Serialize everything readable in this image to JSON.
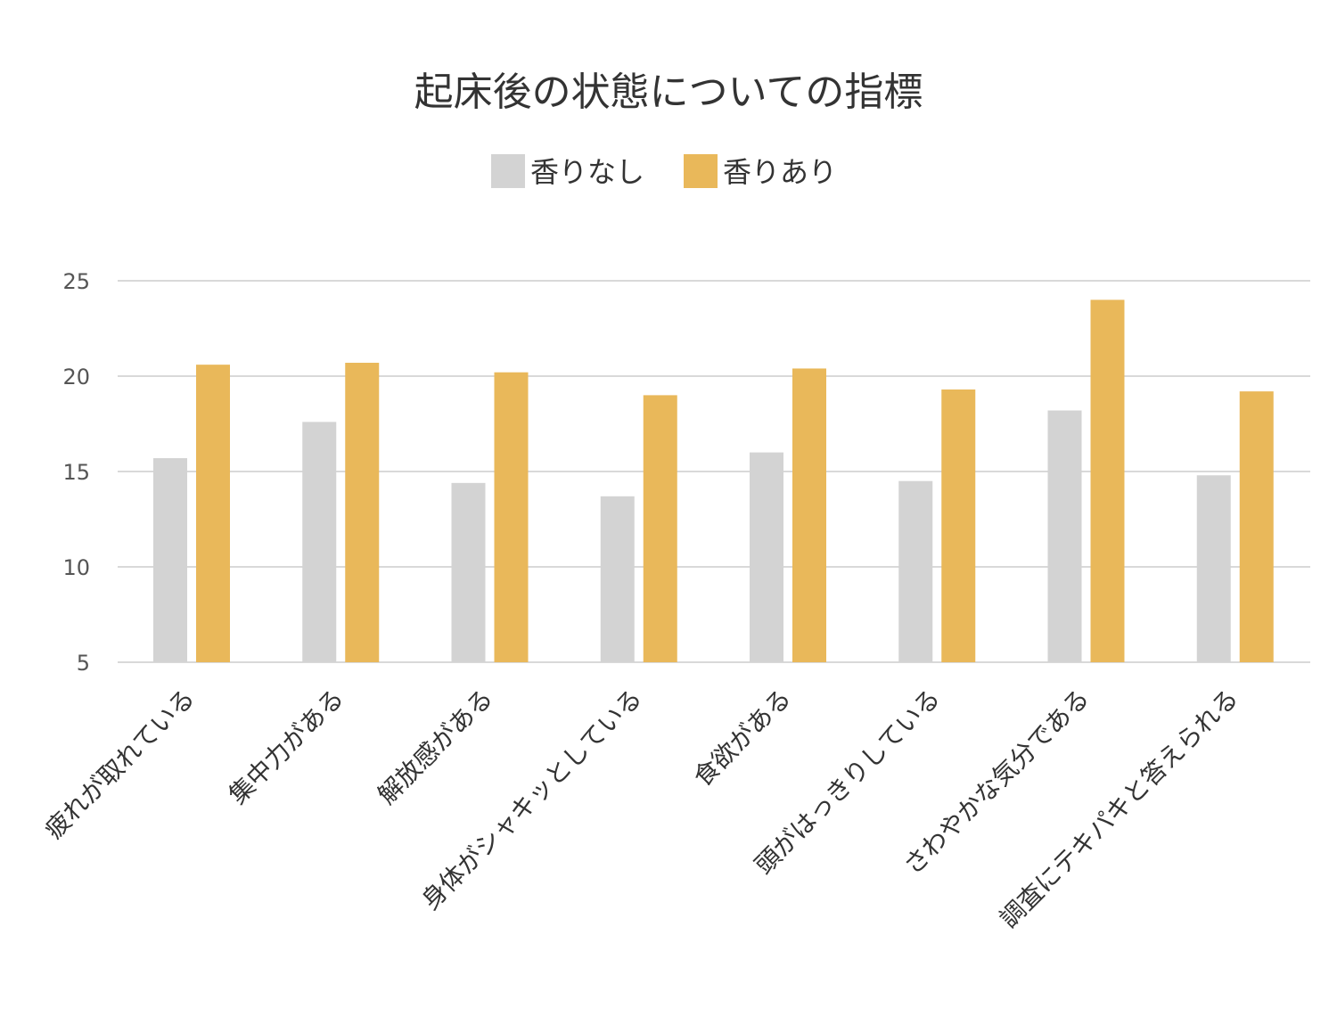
{
  "chart_data": {
    "type": "bar",
    "title": "起床後の状態についての指標",
    "categories": [
      "疲れが取れている",
      "集中力がある",
      "解放感がある",
      "身体がシャキッとしている",
      "食欲がある",
      "頭がはっきりしている",
      "さわやかな気分である",
      "調査にテキパキと答えられる"
    ],
    "series": [
      {
        "name": "香りなし",
        "color": "#d3d3d3",
        "values": [
          15.7,
          17.6,
          14.4,
          13.7,
          16.0,
          14.5,
          18.2,
          14.8
        ]
      },
      {
        "name": "香りあり",
        "color": "#e9b85a",
        "values": [
          20.6,
          20.7,
          20.2,
          19.0,
          20.4,
          19.3,
          24.0,
          19.2
        ]
      }
    ],
    "ylim": [
      5,
      25
    ],
    "yticks": [
      5,
      10,
      15,
      20,
      25
    ],
    "grid": true,
    "legend": "top-center"
  }
}
